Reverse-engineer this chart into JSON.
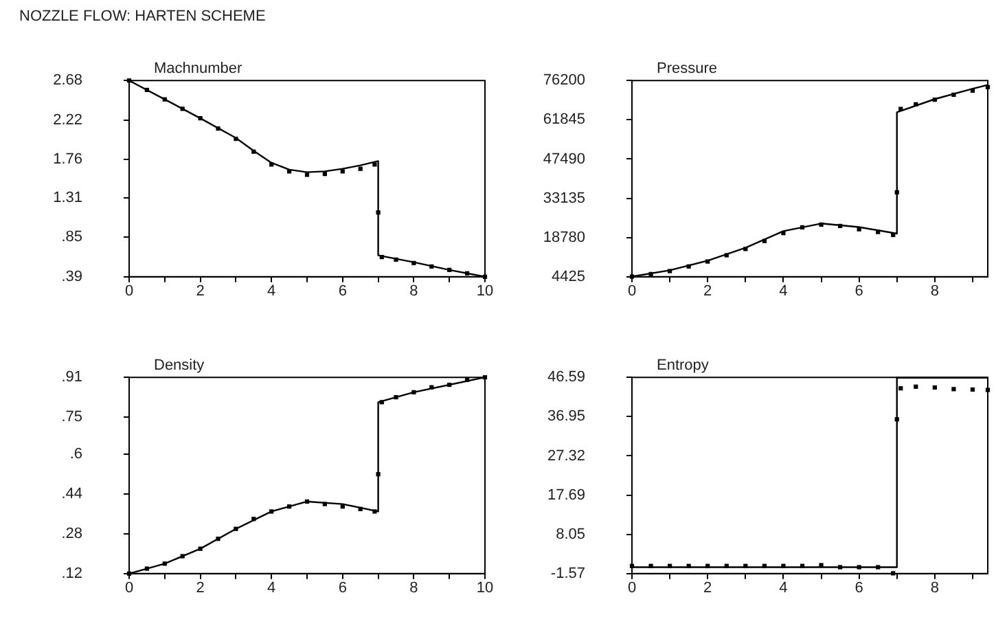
{
  "chart_data": [
    {
      "type": "line",
      "title": "Machnumber",
      "annotations": [
        "NOZZLE FLOW: HARTEN SCHEME"
      ],
      "xlim": [
        0,
        10
      ],
      "xticks": [
        0,
        {
          "value": 1,
          "label": null
        },
        2,
        {
          "value": 3,
          "label": null
        },
        4,
        {
          "value": 5,
          "label": null
        },
        6,
        {
          "value": 7,
          "label": null
        },
        8,
        {
          "value": 9,
          "label": null
        },
        10
      ],
      "ylim": [
        0.39,
        2.68
      ],
      "yticks": [
        {
          "value": 0.39,
          "label": ".39"
        },
        {
          "value": 0.85,
          "label": ".85"
        },
        1.31,
        1.76,
        2.22,
        2.68
      ],
      "grid": false,
      "series": [
        {
          "type": "line",
          "color": "#000000",
          "marker": "none",
          "x": [
            0,
            1,
            2,
            3,
            3.5,
            4,
            4.5,
            5,
            5.5,
            6,
            6.5,
            7,
            7,
            8,
            9,
            10
          ],
          "values": [
            2.68,
            2.46,
            2.24,
            2.01,
            1.86,
            1.72,
            1.64,
            1.61,
            1.62,
            1.65,
            1.69,
            1.74,
            0.64,
            0.56,
            0.47,
            0.39
          ]
        },
        {
          "type": "scatter",
          "color": "#000000",
          "marker": "square",
          "x": [
            0,
            0.5,
            1,
            1.5,
            2,
            2.5,
            3,
            3.5,
            4,
            4.5,
            5,
            5.5,
            6,
            6.5,
            6.9,
            7,
            7.1,
            7.5,
            8,
            8.5,
            9,
            9.5,
            10
          ],
          "values": [
            2.68,
            2.57,
            2.46,
            2.35,
            2.24,
            2.12,
            2.0,
            1.85,
            1.7,
            1.62,
            1.58,
            1.59,
            1.62,
            1.65,
            1.7,
            1.14,
            0.62,
            0.59,
            0.55,
            0.51,
            0.47,
            0.43,
            0.39
          ]
        }
      ]
    },
    {
      "type": "line",
      "title": "Pressure",
      "xlim": [
        0,
        9.4
      ],
      "xticks": [
        0,
        {
          "value": 1,
          "label": null
        },
        2,
        {
          "value": 3,
          "label": null
        },
        4,
        {
          "value": 5,
          "label": null
        },
        6,
        {
          "value": 7,
          "label": null
        },
        8,
        {
          "value": 9,
          "label": null
        }
      ],
      "ylim": [
        4425,
        76200
      ],
      "yticks": [
        4425,
        18780,
        33135,
        47490,
        61845,
        76200
      ],
      "grid": false,
      "series": [
        {
          "type": "line",
          "color": "#000000",
          "marker": "none",
          "x": [
            0,
            1,
            2,
            3,
            4,
            5,
            6,
            7,
            7,
            8,
            9,
            9.4
          ],
          "values": [
            4500,
            6800,
            10300,
            15000,
            21100,
            23900,
            22600,
            20200,
            64600,
            69400,
            73200,
            74600
          ]
        },
        {
          "type": "scatter",
          "color": "#000000",
          "marker": "square",
          "x": [
            0,
            0.5,
            1,
            1.5,
            2,
            2.5,
            3,
            3.5,
            4,
            4.5,
            5,
            5.5,
            6,
            6.5,
            6.9,
            7,
            7.1,
            7.5,
            8,
            8.5,
            9,
            9.4
          ],
          "values": [
            4500,
            5400,
            6500,
            8200,
            10000,
            12300,
            14600,
            17500,
            20400,
            22500,
            23500,
            23000,
            21800,
            20800,
            19700,
            35300,
            65800,
            67500,
            69200,
            71000,
            72500,
            73800
          ]
        }
      ]
    },
    {
      "type": "line",
      "title": "Density",
      "xlim": [
        0,
        10
      ],
      "xticks": [
        0,
        {
          "value": 1,
          "label": null
        },
        2,
        {
          "value": 3,
          "label": null
        },
        4,
        {
          "value": 5,
          "label": null
        },
        6,
        {
          "value": 7,
          "label": null
        },
        8,
        {
          "value": 9,
          "label": null
        },
        10
      ],
      "ylim": [
        0.12,
        0.91
      ],
      "yticks": [
        {
          "value": 0.12,
          "label": ".12"
        },
        {
          "value": 0.28,
          "label": ".28"
        },
        {
          "value": 0.44,
          "label": ".44"
        },
        {
          "value": 0.6,
          "label": ".6"
        },
        {
          "value": 0.75,
          "label": ".75"
        },
        {
          "value": 0.91,
          "label": ".91"
        }
      ],
      "grid": false,
      "series": [
        {
          "type": "line",
          "color": "#000000",
          "marker": "none",
          "x": [
            0,
            1,
            2,
            3,
            4,
            5,
            6,
            7,
            7,
            8,
            9,
            10
          ],
          "values": [
            0.12,
            0.16,
            0.22,
            0.3,
            0.37,
            0.41,
            0.4,
            0.37,
            0.81,
            0.85,
            0.88,
            0.91
          ]
        },
        {
          "type": "scatter",
          "color": "#000000",
          "marker": "square",
          "x": [
            0,
            0.5,
            1,
            1.5,
            2,
            2.5,
            3,
            3.5,
            4,
            4.5,
            5,
            5.5,
            6,
            6.5,
            6.9,
            7,
            7.1,
            7.5,
            8,
            8.5,
            9,
            9.5,
            10
          ],
          "values": [
            0.12,
            0.14,
            0.16,
            0.19,
            0.22,
            0.26,
            0.3,
            0.34,
            0.37,
            0.39,
            0.41,
            0.4,
            0.39,
            0.38,
            0.37,
            0.52,
            0.81,
            0.83,
            0.85,
            0.87,
            0.88,
            0.9,
            0.91
          ]
        }
      ]
    },
    {
      "type": "line",
      "title": "Entropy",
      "xlim": [
        0,
        9.4
      ],
      "xticks": [
        0,
        {
          "value": 1,
          "label": null
        },
        2,
        {
          "value": 3,
          "label": null
        },
        4,
        {
          "value": 5,
          "label": null
        },
        6,
        {
          "value": 7,
          "label": null
        },
        8,
        {
          "value": 9,
          "label": null
        }
      ],
      "ylim": [
        -1.57,
        46.59
      ],
      "yticks": [
        -1.57,
        8.05,
        17.69,
        27.32,
        36.95,
        46.59
      ],
      "grid": false,
      "series": [
        {
          "type": "line",
          "color": "#000000",
          "marker": "none",
          "x": [
            0,
            7,
            7,
            9.4
          ],
          "values": [
            0,
            0,
            46.5,
            46.5
          ]
        },
        {
          "type": "scatter",
          "color": "#000000",
          "marker": "square",
          "x": [
            0,
            0.5,
            1,
            1.5,
            2,
            2.5,
            3,
            3.5,
            4,
            4.5,
            5,
            5.5,
            6,
            6.5,
            6.9,
            7,
            7.1,
            7.5,
            8,
            8.5,
            9,
            9.4
          ],
          "values": [
            0.3,
            0.3,
            0.3,
            0.3,
            0.3,
            0.3,
            0.3,
            0.3,
            0.3,
            0.3,
            0.5,
            0,
            0,
            0,
            -1.5,
            36.3,
            43.9,
            44.3,
            44.1,
            43.7,
            43.6,
            43.5
          ]
        }
      ]
    }
  ]
}
